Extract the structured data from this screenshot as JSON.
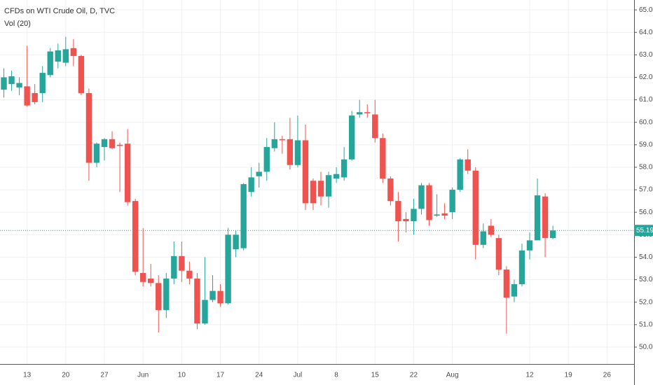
{
  "chart_data": {
    "type": "candlestick",
    "title": "CFDs on WTI Crude Oil, D, TVC",
    "subtitle": "Vol (20)",
    "up_color": "#26a69a",
    "down_color": "#ef5350",
    "grid": true,
    "categories": [
      null,
      null,
      null,
      "13",
      null,
      null,
      null,
      null,
      "20",
      null,
      null,
      null,
      null,
      "27",
      null,
      null,
      null,
      null,
      "Jun",
      null,
      null,
      null,
      null,
      "10",
      null,
      null,
      null,
      null,
      "17",
      null,
      null,
      null,
      null,
      "24",
      null,
      null,
      null,
      null,
      "Jul",
      null,
      null,
      null,
      null,
      "8",
      null,
      null,
      null,
      null,
      "15",
      null,
      null,
      null,
      null,
      "22",
      null,
      null,
      null,
      null,
      "Aug",
      null,
      null,
      null,
      null,
      null,
      null,
      null,
      null,
      null,
      "12",
      null,
      null,
      null,
      null,
      "19",
      null,
      null,
      null,
      null,
      "26",
      null,
      null,
      null
    ],
    "open": [
      61.45,
      61.7,
      61.55,
      61.6,
      61.3,
      61.3,
      62.1,
      62.7,
      62.65,
      63.3,
      62.95,
      61.3,
      58.2,
      58.9,
      59.25,
      59.0,
      59.05,
      56.5,
      53.3,
      53.05,
      52.85,
      51.65,
      53.05,
      54.05,
      53.4,
      53.05,
      51.05,
      52.1,
      52.5,
      51.95,
      54.35,
      54.4,
      56.9,
      57.6,
      57.8,
      58.85,
      59.25,
      59.25,
      58.1,
      59.2,
      57.4,
      57.4,
      56.7,
      57.5,
      57.55,
      58.35,
      60.35,
      60.45,
      60.35,
      59.3,
      57.5,
      56.5,
      55.7,
      55.6,
      56.15,
      57.2,
      55.85,
      55.95,
      56.0,
      57.0,
      58.35,
      57.85,
      54.55,
      55.4,
      54.85,
      53.45,
      52.25,
      52.8,
      54.3,
      54.75,
      56.7,
      54.85,
      null,
      null,
      null,
      null,
      null,
      null,
      null,
      null,
      null,
      null
    ],
    "high": [
      62.4,
      62.3,
      62.0,
      63.4,
      61.7,
      62.5,
      63.3,
      63.5,
      63.8,
      63.7,
      63.0,
      61.5,
      59.1,
      59.3,
      59.6,
      59.1,
      59.7,
      56.6,
      55.3,
      53.7,
      53.2,
      53.3,
      54.7,
      54.7,
      53.8,
      53.3,
      54.0,
      53.2,
      52.8,
      55.3,
      55.2,
      57.3,
      58.0,
      58.2,
      59.3,
      60.0,
      59.4,
      60.2,
      60.3,
      59.9,
      57.5,
      57.8,
      57.8,
      58.0,
      58.9,
      60.5,
      61.0,
      60.8,
      61.0,
      59.5,
      57.6,
      56.9,
      56.0,
      56.6,
      57.3,
      57.3,
      56.8,
      56.4,
      57.1,
      58.4,
      58.8,
      58.0,
      55.5,
      55.7,
      55.0,
      53.6,
      53.0,
      54.6,
      55.1,
      57.5,
      56.85,
      55.4,
      null,
      null,
      null,
      null,
      null,
      null,
      null,
      null,
      null,
      null
    ],
    "low": [
      61.1,
      61.4,
      61.2,
      60.7,
      60.8,
      60.9,
      62.0,
      62.4,
      62.5,
      62.5,
      61.2,
      57.4,
      58.0,
      58.3,
      58.8,
      56.9,
      56.3,
      53.2,
      52.7,
      52.7,
      50.65,
      51.3,
      52.8,
      52.9,
      52.8,
      50.8,
      51.0,
      52.0,
      51.8,
      51.9,
      54.0,
      54.3,
      56.7,
      57.1,
      57.4,
      58.7,
      58.6,
      57.9,
      58.0,
      56.1,
      56.1,
      56.3,
      56.2,
      57.3,
      57.4,
      58.3,
      60.2,
      60.2,
      59.1,
      57.3,
      56.3,
      54.7,
      55.1,
      55.0,
      55.9,
      55.4,
      55.8,
      55.7,
      55.7,
      56.9,
      57.7,
      53.9,
      54.4,
      54.9,
      53.2,
      50.6,
      52.0,
      52.7,
      53.9,
      54.8,
      54.0,
      54.8,
      null,
      null,
      null,
      null,
      null,
      null,
      null,
      null,
      null,
      null
    ],
    "close": [
      62.0,
      62.05,
      61.75,
      60.75,
      60.9,
      62.2,
      63.15,
      63.2,
      63.25,
      62.95,
      61.3,
      58.2,
      59.05,
      59.25,
      58.85,
      58.95,
      56.45,
      53.35,
      52.9,
      52.85,
      51.65,
      53.05,
      54.05,
      53.4,
      53.05,
      51.05,
      52.1,
      52.5,
      51.95,
      55.0,
      55.0,
      57.25,
      57.55,
      57.8,
      58.9,
      59.25,
      59.2,
      58.1,
      59.2,
      56.4,
      56.4,
      56.7,
      57.65,
      57.7,
      58.35,
      60.3,
      60.45,
      60.4,
      59.3,
      57.5,
      56.5,
      55.6,
      55.6,
      56.15,
      57.2,
      55.65,
      55.9,
      55.85,
      57.0,
      58.35,
      57.85,
      54.55,
      55.15,
      55.0,
      53.45,
      52.2,
      52.8,
      54.3,
      54.75,
      56.75,
      54.85,
      55.19,
      null,
      null,
      null,
      null,
      null,
      null,
      null,
      null,
      null,
      null
    ],
    "last_price": 55.19,
    "ylim": [
      49.25,
      65.44
    ],
    "yticks": [
      {
        "value": 50,
        "label": "50.00"
      },
      {
        "value": 51,
        "label": "51.00"
      },
      {
        "value": 52,
        "label": "52.00"
      },
      {
        "value": 53,
        "label": "53.00"
      },
      {
        "value": 54,
        "label": "54.00"
      },
      {
        "value": 55,
        "label": "55.00"
      },
      {
        "value": 56,
        "label": "56.00"
      },
      {
        "value": 57,
        "label": "57.00"
      },
      {
        "value": 58,
        "label": "58.00"
      },
      {
        "value": 59,
        "label": "59.00"
      },
      {
        "value": 60,
        "label": "60.00"
      },
      {
        "value": 61,
        "label": "61.00"
      },
      {
        "value": 62,
        "label": "62.00"
      },
      {
        "value": 63,
        "label": "63.00"
      },
      {
        "value": 64,
        "label": "64.00"
      },
      {
        "value": 65,
        "label": "65.00"
      }
    ]
  }
}
